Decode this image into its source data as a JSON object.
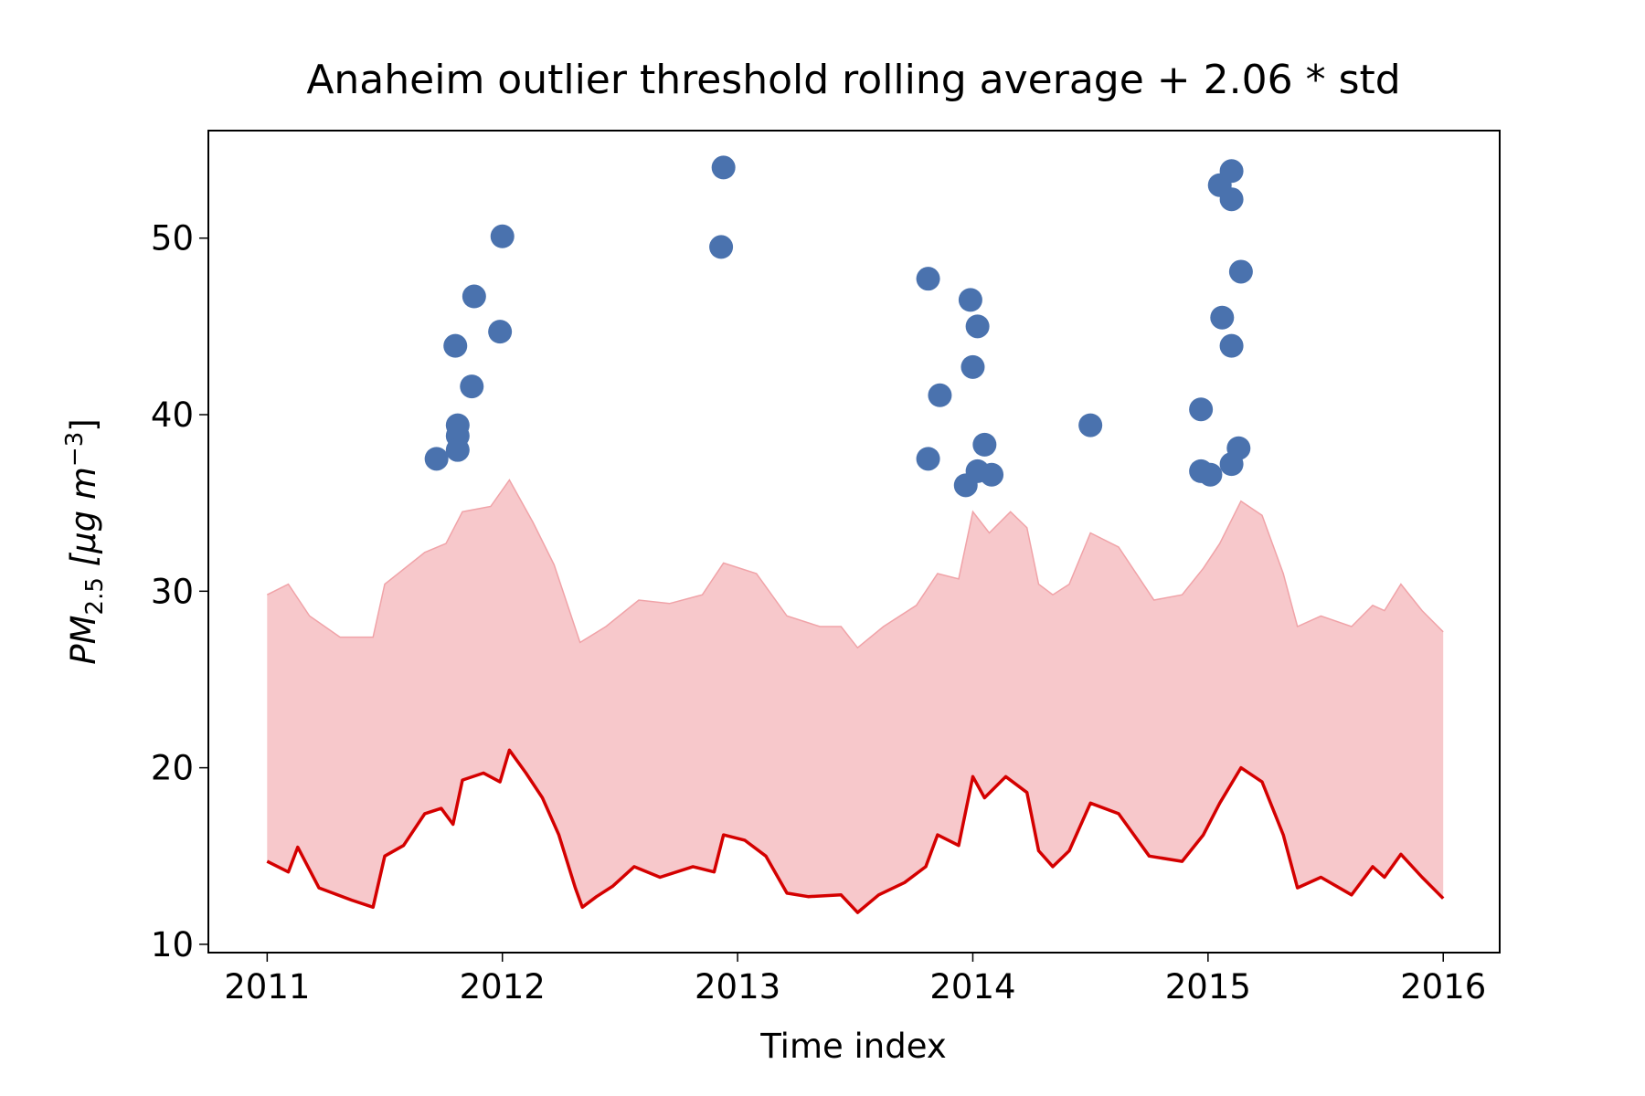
{
  "chart_data": {
    "type": "line",
    "title": "Anaheim outlier threshold rolling average + 2.06 * std",
    "xlabel": "Time index",
    "ylabel_parts": [
      "PM",
      "2.5",
      " [μg m",
      "−3",
      "]"
    ],
    "xlim": [
      2010.75,
      2016.24
    ],
    "ylim": [
      9.53,
      56.09
    ],
    "xticks": [
      2011,
      2012,
      2013,
      2014,
      2015,
      2016
    ],
    "yticks": [
      10,
      20,
      30,
      40,
      50
    ],
    "grid": false,
    "series": [
      {
        "type": "line",
        "color": "#d40000",
        "x": [
          2011.0,
          2011.09,
          2011.13,
          2011.22,
          2011.36,
          2011.45,
          2011.5,
          2011.58,
          2011.67,
          2011.74,
          2011.79,
          2011.83,
          2011.92,
          2011.99,
          2012.03,
          2012.1,
          2012.17,
          2012.24,
          2012.31,
          2012.34,
          2012.4,
          2012.47,
          2012.56,
          2012.67,
          2012.81,
          2012.9,
          2012.94,
          2013.03,
          2013.12,
          2013.21,
          2013.3,
          2013.44,
          2013.51,
          2013.6,
          2013.71,
          2013.8,
          2013.85,
          2013.94,
          2014.0,
          2014.05,
          2014.14,
          2014.23,
          2014.28,
          2014.34,
          2014.41,
          2014.5,
          2014.62,
          2014.75,
          2014.89,
          2014.98,
          2015.05,
          2015.14,
          2015.23,
          2015.32,
          2015.38,
          2015.48,
          2015.61,
          2015.7,
          2015.75,
          2015.82,
          2015.91,
          2016.0
        ],
        "values": [
          14.7,
          14.1,
          15.5,
          13.2,
          12.5,
          12.1,
          15.0,
          15.6,
          17.4,
          17.7,
          16.8,
          19.3,
          19.7,
          19.2,
          21.0,
          19.7,
          18.3,
          16.2,
          13.2,
          12.1,
          12.7,
          13.3,
          14.4,
          13.8,
          14.4,
          14.1,
          16.2,
          15.9,
          15.0,
          12.9,
          12.7,
          12.8,
          11.8,
          12.8,
          13.5,
          14.4,
          16.2,
          15.6,
          19.5,
          18.3,
          19.5,
          18.6,
          15.3,
          14.4,
          15.3,
          18.0,
          17.4,
          15.0,
          14.7,
          16.2,
          18.0,
          20.0,
          19.2,
          16.2,
          13.2,
          13.8,
          12.8,
          14.4,
          13.8,
          15.1,
          13.8,
          12.6
        ]
      },
      {
        "type": "area",
        "color": "#f7c8cb",
        "edge_color": "#f0a3a8",
        "fill_to_series": 0,
        "x": [
          2011.0,
          2011.09,
          2011.18,
          2011.31,
          2011.45,
          2011.5,
          2011.67,
          2011.76,
          2011.83,
          2011.95,
          2012.03,
          2012.13,
          2012.22,
          2012.33,
          2012.44,
          2012.58,
          2012.71,
          2012.85,
          2012.94,
          2013.08,
          2013.21,
          2013.35,
          2013.44,
          2013.51,
          2013.62,
          2013.76,
          2013.85,
          2013.94,
          2014.0,
          2014.07,
          2014.16,
          2014.23,
          2014.28,
          2014.34,
          2014.41,
          2014.5,
          2014.62,
          2014.77,
          2014.89,
          2014.98,
          2015.05,
          2015.14,
          2015.23,
          2015.32,
          2015.38,
          2015.48,
          2015.61,
          2015.7,
          2015.75,
          2015.82,
          2015.91,
          2016.0
        ],
        "values": [
          29.8,
          30.4,
          28.6,
          27.4,
          27.4,
          30.4,
          32.2,
          32.7,
          34.5,
          34.8,
          36.3,
          33.9,
          31.5,
          27.1,
          28.0,
          29.5,
          29.3,
          29.8,
          31.6,
          31.0,
          28.6,
          28.0,
          28.0,
          26.8,
          28.0,
          29.2,
          31.0,
          30.7,
          34.5,
          33.3,
          34.5,
          33.6,
          30.4,
          29.8,
          30.4,
          33.3,
          32.5,
          29.5,
          29.8,
          31.3,
          32.7,
          35.1,
          34.3,
          31.0,
          28.0,
          28.6,
          28.0,
          29.2,
          28.9,
          30.4,
          28.9,
          27.7
        ]
      },
      {
        "type": "scatter",
        "color": "#4a72ae",
        "x": [
          2011.72,
          2011.8,
          2011.81,
          2011.81,
          2011.81,
          2011.87,
          2011.88,
          2011.99,
          2012.0,
          2012.93,
          2012.94,
          2013.81,
          2013.81,
          2013.86,
          2013.97,
          2013.99,
          2014.0,
          2014.02,
          2014.02,
          2014.05,
          2014.08,
          2014.5,
          2014.97,
          2014.97,
          2015.01,
          2015.05,
          2015.06,
          2015.1,
          2015.1,
          2015.1,
          2015.1,
          2015.13,
          2015.14
        ],
        "values": [
          37.5,
          43.9,
          39.4,
          38.8,
          38.0,
          41.6,
          46.7,
          44.7,
          50.1,
          49.5,
          54.0,
          47.7,
          37.5,
          41.1,
          36.0,
          46.5,
          42.7,
          45.0,
          36.8,
          38.3,
          36.6,
          39.4,
          40.3,
          36.8,
          36.6,
          53.0,
          45.5,
          53.8,
          52.2,
          43.9,
          37.2,
          38.1,
          48.1
        ]
      }
    ]
  }
}
